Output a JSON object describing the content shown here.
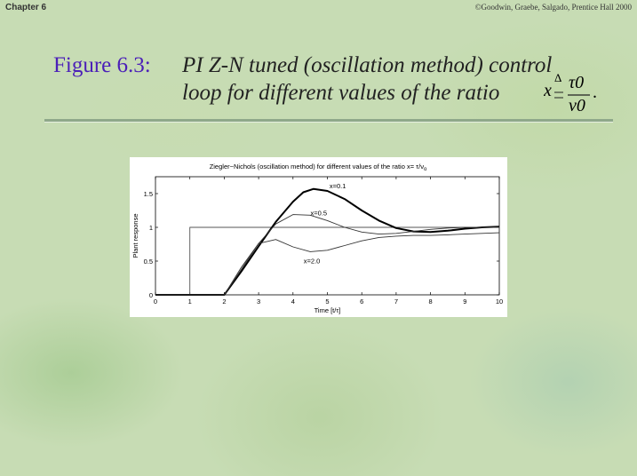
{
  "header": {
    "chapter": "Chapter 6",
    "copyright": "©Goodwin, Graebe, Salgado, Prentice Hall 2000"
  },
  "figure": {
    "label": "Figure 6.3:",
    "text_line1": "PI Z-N tuned (oscillation method) control",
    "text_line2": "loop for different values of the ratio",
    "formula": {
      "var": "x",
      "delta": "Δ",
      "numerator": "τ0",
      "denominator": "ν0",
      "tail": "."
    }
  },
  "chart_data": {
    "type": "line",
    "title": "Ziegler−Nichols (oscillation method)  for different values of the ratio x= τ/ν",
    "title_subscript": "o",
    "xlabel": "Time [t/τ]",
    "ylabel": "Plant response",
    "xlim": [
      0,
      10
    ],
    "ylim": [
      0,
      1.75
    ],
    "xticks": [
      0,
      1,
      2,
      3,
      4,
      5,
      6,
      7,
      8,
      9,
      10
    ],
    "yticks": [
      0,
      0.5,
      1,
      1.5
    ],
    "ytick_labels": [
      "0",
      "0.5",
      "1",
      "1.5"
    ],
    "grid": false,
    "series": [
      {
        "name": "setpoint",
        "color": "#555555",
        "width": 0.9,
        "x": [
          0,
          1,
          1,
          10
        ],
        "y": [
          0,
          0,
          1,
          1
        ]
      },
      {
        "name": "x=0.1",
        "color": "#000000",
        "width": 2,
        "x": [
          0,
          2,
          2.5,
          3,
          3.5,
          4,
          4.3,
          4.6,
          5,
          5.5,
          6,
          6.5,
          7,
          7.5,
          8,
          8.5,
          9,
          9.5,
          10
        ],
        "y": [
          0,
          0,
          0.35,
          0.72,
          1.08,
          1.38,
          1.52,
          1.57,
          1.54,
          1.42,
          1.25,
          1.1,
          0.99,
          0.94,
          0.93,
          0.95,
          0.98,
          1.0,
          1.01
        ]
      },
      {
        "name": "x=0.5",
        "color": "#333333",
        "width": 0.9,
        "x": [
          0,
          2,
          2.5,
          3,
          3.5,
          4,
          4.5,
          5,
          5.5,
          6,
          6.5,
          7,
          7.5,
          8,
          8.5,
          9,
          9.5,
          10
        ],
        "y": [
          0,
          0,
          0.38,
          0.76,
          1.05,
          1.19,
          1.18,
          1.1,
          1.0,
          0.93,
          0.9,
          0.91,
          0.94,
          0.97,
          0.99,
          1.0,
          1.0,
          1.0
        ]
      },
      {
        "name": "x=2.0",
        "color": "#333333",
        "width": 0.9,
        "x": [
          0,
          2,
          2.5,
          3,
          3.5,
          4,
          4.5,
          5,
          5.5,
          6,
          6.5,
          7,
          7.5,
          8,
          8.5,
          9,
          9.5,
          10
        ],
        "y": [
          0,
          0,
          0.41,
          0.76,
          0.82,
          0.71,
          0.64,
          0.66,
          0.73,
          0.8,
          0.85,
          0.87,
          0.88,
          0.88,
          0.89,
          0.9,
          0.91,
          0.92
        ]
      }
    ],
    "annotations": [
      {
        "text": "x=0.1",
        "x": 5.3,
        "y": 1.58
      },
      {
        "text": "x=0.5",
        "x": 4.75,
        "y": 1.18
      },
      {
        "text": "x=2.0",
        "x": 4.55,
        "y": 0.47
      }
    ]
  }
}
